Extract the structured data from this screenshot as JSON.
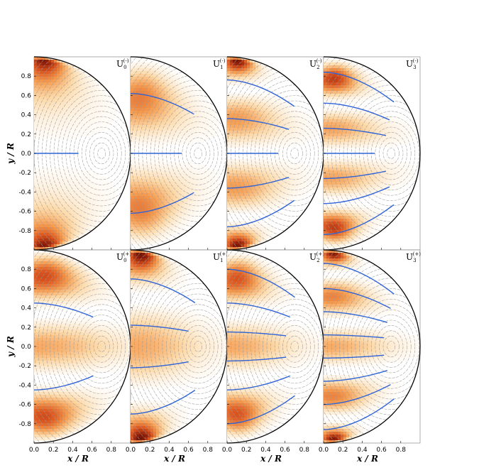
{
  "chart_data": {
    "type": "heatmap",
    "xlabel": "x / R",
    "ylabel": "y / R",
    "xlim": [
      0.0,
      1.0
    ],
    "ylim": [
      -1.0,
      1.0
    ],
    "x_ticks": [
      "0.0",
      "0.2",
      "0.4",
      "0.6",
      "0.8"
    ],
    "y_ticks": [
      "0.8",
      "0.6",
      "0.4",
      "0.2",
      "0.0",
      "-0.2",
      "-0.4",
      "-0.6",
      "-0.8"
    ],
    "colormap": [
      "#ffffff",
      "#fdd9a8",
      "#f59b4f",
      "#d9531e",
      "#8c1e0a",
      "#3d0603"
    ],
    "contour_color": "#9a9a9a",
    "nodal_line_color": "#2f63d6",
    "boundary_color": "#000000",
    "contour_center": [
      0.7,
      0.0
    ],
    "panels": [
      {
        "label": "U",
        "sub": "0",
        "sup": "(-)",
        "row": 0,
        "col": 0,
        "parity": "odd",
        "n": 0,
        "nodal_y": [
          0.0
        ]
      },
      {
        "label": "U",
        "sub": "1",
        "sup": "(-)",
        "row": 0,
        "col": 1,
        "parity": "odd",
        "n": 1,
        "nodal_y": [
          0.62,
          0.0,
          -0.62
        ]
      },
      {
        "label": "U",
        "sub": "2",
        "sup": "(-)",
        "row": 0,
        "col": 2,
        "parity": "odd",
        "n": 2,
        "nodal_y": [
          0.76,
          0.36,
          0.0,
          -0.36,
          -0.76
        ]
      },
      {
        "label": "U",
        "sub": "3",
        "sup": "(-)",
        "row": 0,
        "col": 3,
        "parity": "odd",
        "n": 3,
        "nodal_y": [
          0.84,
          0.52,
          0.26,
          0.0,
          -0.26,
          -0.52,
          -0.84
        ]
      },
      {
        "label": "U",
        "sub": "0",
        "sup": "(+)",
        "row": 1,
        "col": 0,
        "parity": "even",
        "n": 0,
        "nodal_y": [
          0.45,
          -0.45
        ]
      },
      {
        "label": "U",
        "sub": "1",
        "sup": "(+)",
        "row": 1,
        "col": 1,
        "parity": "even",
        "n": 1,
        "nodal_y": [
          0.7,
          0.22,
          -0.22,
          -0.7
        ]
      },
      {
        "label": "U",
        "sub": "2",
        "sup": "(+)",
        "row": 1,
        "col": 2,
        "parity": "even",
        "n": 2,
        "nodal_y": [
          0.8,
          0.45,
          0.15,
          -0.15,
          -0.45,
          -0.8
        ]
      },
      {
        "label": "U",
        "sub": "3",
        "sup": "(+)",
        "row": 1,
        "col": 3,
        "parity": "even",
        "n": 3,
        "nodal_y": [
          0.86,
          0.6,
          0.36,
          0.12,
          -0.12,
          -0.36,
          -0.6,
          -0.86
        ]
      }
    ]
  }
}
